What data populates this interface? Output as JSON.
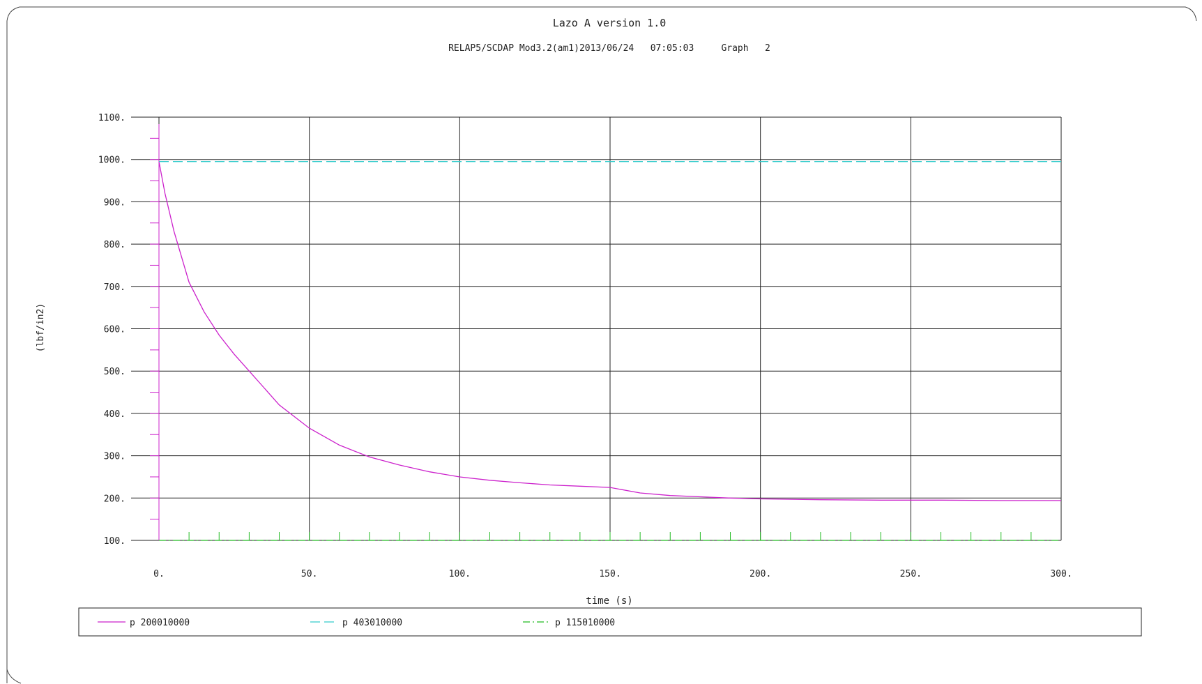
{
  "chart_data": {
    "type": "line",
    "title": "Lazo A version 1.0",
    "subtitle": "RELAP5/SCDAP Mod3.2(am1)2013/06/24   07:05:03     Graph   2",
    "xlabel": "time (s)",
    "ylabel": "(lbf/in2)",
    "xlim": [
      0,
      300
    ],
    "ylim": [
      100,
      1100
    ],
    "xticks": [
      0,
      50,
      100,
      150,
      200,
      250,
      300
    ],
    "xtick_labels": [
      "0.",
      "50.",
      "100.",
      "150.",
      "200.",
      "250.",
      "300."
    ],
    "yticks": [
      100,
      200,
      300,
      400,
      500,
      600,
      700,
      800,
      900,
      1000,
      1100
    ],
    "ytick_labels": [
      "100.",
      "200.",
      "300.",
      "400.",
      "500.",
      "600.",
      "700.",
      "800.",
      "900.",
      "1000.",
      "1100."
    ],
    "grid": true,
    "legend_position": "bottom",
    "series": [
      {
        "name": "p 200010000",
        "color": "#cc22cc",
        "style": "solid",
        "x": [
          0,
          2,
          5,
          10,
          15,
          20,
          25,
          30,
          35,
          40,
          50,
          60,
          70,
          80,
          90,
          100,
          110,
          120,
          130,
          140,
          150,
          160,
          170,
          180,
          190,
          200,
          220,
          240,
          260,
          280,
          300
        ],
        "y": [
          995,
          920,
          830,
          710,
          640,
          585,
          540,
          500,
          460,
          420,
          365,
          325,
          297,
          278,
          262,
          250,
          242,
          236,
          231,
          228,
          225,
          212,
          206,
          203,
          200,
          198,
          196,
          195,
          195,
          194,
          194
        ]
      },
      {
        "name": "p 403010000",
        "color": "#33cccc",
        "style": "dashed",
        "x": [
          0,
          300
        ],
        "y": [
          995,
          995
        ]
      },
      {
        "name": "p 115010000",
        "color": "#22bb22",
        "style": "dashdot",
        "x": [
          0,
          300
        ],
        "y": [
          100,
          100
        ]
      }
    ]
  }
}
